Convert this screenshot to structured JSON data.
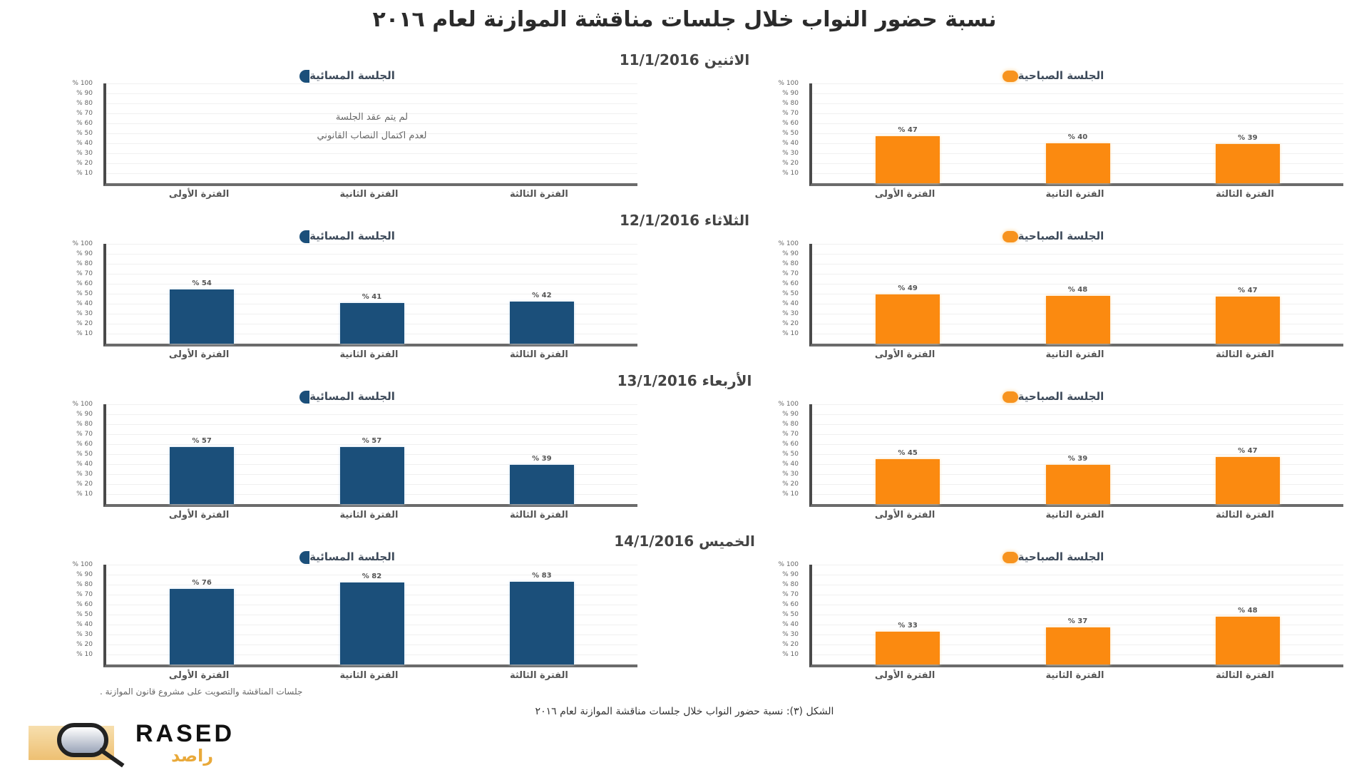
{
  "title": "نسبة حضور النواب خلال جلسات مناقشة الموازنة لعام ٢٠١٦",
  "legend": {
    "evening": {
      "label": "الجلسة المسائية",
      "icon": "crescent-moon-icon",
      "color": "#1b4f7a"
    },
    "morning": {
      "label": "الجلسة الصباحية",
      "icon": "sun-icon",
      "color": "#f7931e"
    }
  },
  "y_ticks": [
    "% 100",
    "% 90",
    "% 80",
    "% 70",
    "% 60",
    "% 50",
    "% 40",
    "% 30",
    "% 20",
    "% 10"
  ],
  "x_categories": [
    "الفترة الأولى",
    "الفترة الثانية",
    "الفترة الثالثة"
  ],
  "days": [
    {
      "header": "الاثنين 11/1/2016",
      "evening": {
        "values": [],
        "labels": [],
        "note_line1": "لم يتم عقد الجلسة",
        "note_line2": "لعدم اكتمال النصاب القانوني"
      },
      "morning": {
        "values": [
          47,
          40,
          39
        ],
        "labels": [
          "% 47",
          "% 40",
          "% 39"
        ]
      }
    },
    {
      "header": "الثلاثاء 12/1/2016",
      "evening": {
        "values": [
          54,
          41,
          42
        ],
        "labels": [
          "% 54",
          "% 41",
          "% 42"
        ]
      },
      "morning": {
        "values": [
          49,
          48,
          47
        ],
        "labels": [
          "% 49",
          "% 48",
          "% 47"
        ]
      }
    },
    {
      "header": "الأربعاء 13/1/2016",
      "evening": {
        "values": [
          57,
          57,
          39
        ],
        "labels": [
          "% 57",
          "% 57",
          "% 39"
        ]
      },
      "morning": {
        "values": [
          45,
          39,
          47
        ],
        "labels": [
          "% 45",
          "% 39",
          "% 47"
        ]
      }
    },
    {
      "header": "الخميس 14/1/2016",
      "evening": {
        "values": [
          76,
          82,
          83
        ],
        "labels": [
          "% 76",
          "% 82",
          "% 83"
        ]
      },
      "morning": {
        "values": [
          33,
          37,
          48
        ],
        "labels": [
          "% 33",
          "% 37",
          "% 48"
        ]
      }
    }
  ],
  "source": "جلسات المناقشة والتصويت على مشروع قانون الموازنة .",
  "caption": "الشكل (٣): نسبة حضور النواب خلال جلسات مناقشة الموازنة لعام ٢٠١٦",
  "logo": {
    "en": "RASED",
    "ar": "راصد"
  },
  "chart_data": [
    {
      "type": "bar",
      "title": "الاثنين 11/1/2016 - الجلسة المسائية",
      "categories": [
        "الفترة الأولى",
        "الفترة الثانية",
        "الفترة الثالثة"
      ],
      "values": [
        null,
        null,
        null
      ],
      "annotation": "لم يتم عقد الجلسة لعدم اكتمال النصاب القانوني",
      "ylim": [
        0,
        100
      ],
      "ylabel": "%",
      "color": "#1b4f7a"
    },
    {
      "type": "bar",
      "title": "الاثنين 11/1/2016 - الجلسة الصباحية",
      "categories": [
        "الفترة الأولى",
        "الفترة الثانية",
        "الفترة الثالثة"
      ],
      "values": [
        47,
        40,
        39
      ],
      "ylim": [
        0,
        100
      ],
      "ylabel": "%",
      "color": "#f7931e"
    },
    {
      "type": "bar",
      "title": "الثلاثاء 12/1/2016 - الجلسة المسائية",
      "categories": [
        "الفترة الأولى",
        "الفترة الثانية",
        "الفترة الثالثة"
      ],
      "values": [
        54,
        41,
        42
      ],
      "ylim": [
        0,
        100
      ],
      "ylabel": "%",
      "color": "#1b4f7a"
    },
    {
      "type": "bar",
      "title": "الثلاثاء 12/1/2016 - الجلسة الصباحية",
      "categories": [
        "الفترة الأولى",
        "الفترة الثانية",
        "الفترة الثالثة"
      ],
      "values": [
        49,
        48,
        47
      ],
      "ylim": [
        0,
        100
      ],
      "ylabel": "%",
      "color": "#f7931e"
    },
    {
      "type": "bar",
      "title": "الأربعاء 13/1/2016 - الجلسة المسائية",
      "categories": [
        "الفترة الأولى",
        "الفترة الثانية",
        "الفترة الثالثة"
      ],
      "values": [
        57,
        57,
        39
      ],
      "ylim": [
        0,
        100
      ],
      "ylabel": "%",
      "color": "#1b4f7a"
    },
    {
      "type": "bar",
      "title": "الأربعاء 13/1/2016 - الجلسة الصباحية",
      "categories": [
        "الفترة الأولى",
        "الفترة الثانية",
        "الفترة الثالثة"
      ],
      "values": [
        45,
        39,
        47
      ],
      "ylim": [
        0,
        100
      ],
      "ylabel": "%",
      "color": "#f7931e"
    },
    {
      "type": "bar",
      "title": "الخميس 14/1/2016 - الجلسة المسائية",
      "categories": [
        "الفترة الأولى",
        "الفترة الثانية",
        "الفترة الثالثة"
      ],
      "values": [
        76,
        82,
        83
      ],
      "ylim": [
        0,
        100
      ],
      "ylabel": "%",
      "color": "#1b4f7a"
    },
    {
      "type": "bar",
      "title": "الخميس 14/1/2016 - الجلسة الصباحية",
      "categories": [
        "الفترة الأولى",
        "الفترة الثانية",
        "الفترة الثالثة"
      ],
      "values": [
        33,
        37,
        48
      ],
      "ylim": [
        0,
        100
      ],
      "ylabel": "%",
      "color": "#f7931e"
    }
  ]
}
